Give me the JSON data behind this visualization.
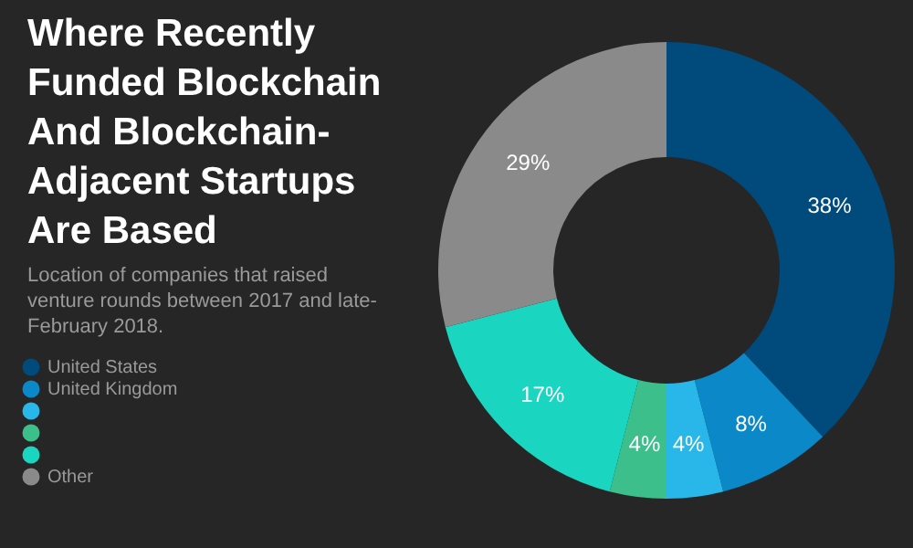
{
  "chart_data": {
    "type": "donut",
    "title": "Where Recently Funded Blockchain And Blockchain-Adjacent Startups Are Based",
    "subtitle": "Location of companies that raised venture rounds between 2017 and late-February 2018.",
    "categories": [
      "United States",
      "United Kingdom",
      null,
      null,
      null,
      "Other"
    ],
    "values": [
      38,
      8,
      4,
      4,
      17,
      29
    ],
    "value_labels": [
      "38%",
      "8%",
      "4%",
      "4%",
      "17%",
      "29%"
    ],
    "colors": [
      "#004a7c",
      "#0a88c8",
      "#29b6e8",
      "#3cbf8a",
      "#1ad6c0",
      "#8a8a8a"
    ],
    "legend": "left"
  }
}
